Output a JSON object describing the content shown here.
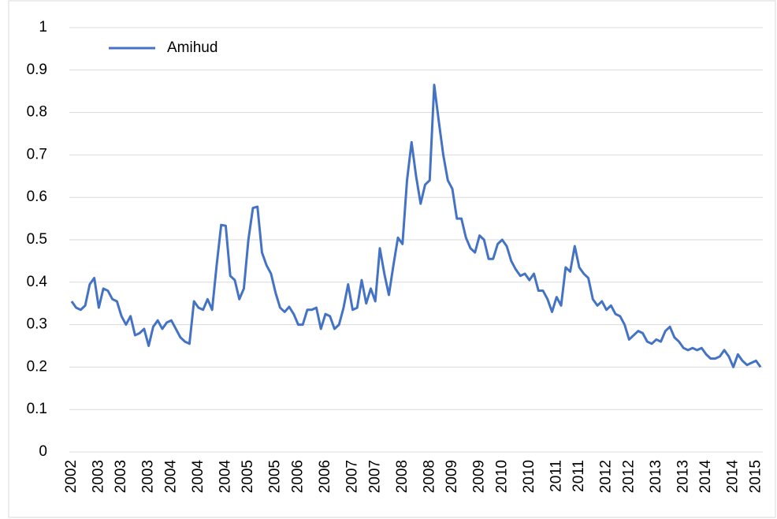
{
  "chart_data": {
    "type": "line",
    "categories": [
      "2002",
      null,
      null,
      null,
      null,
      null,
      "2003",
      null,
      null,
      null,
      null,
      "2003",
      null,
      null,
      null,
      null,
      null,
      "2003",
      null,
      null,
      null,
      null,
      "2004",
      null,
      null,
      null,
      null,
      null,
      "2004",
      null,
      null,
      null,
      null,
      null,
      "2004",
      null,
      null,
      null,
      null,
      "2005",
      null,
      null,
      null,
      null,
      null,
      "2005",
      null,
      null,
      null,
      null,
      "2006",
      null,
      null,
      null,
      null,
      null,
      "2006",
      null,
      null,
      null,
      null,
      null,
      "2007",
      null,
      null,
      null,
      null,
      "2007",
      null,
      null,
      null,
      null,
      null,
      "2008",
      null,
      null,
      null,
      null,
      null,
      "2008",
      null,
      null,
      null,
      null,
      "2009",
      null,
      null,
      null,
      null,
      null,
      "2009",
      null,
      null,
      null,
      null,
      "2010",
      null,
      null,
      null,
      null,
      null,
      "2010",
      null,
      null,
      null,
      null,
      null,
      "2011",
      null,
      null,
      null,
      null,
      "2011",
      null,
      null,
      null,
      null,
      null,
      "2012",
      null,
      null,
      null,
      null,
      "2012",
      null,
      null,
      null,
      null,
      null,
      "2013",
      null,
      null,
      null,
      null,
      null,
      "2013",
      null,
      null,
      null,
      null,
      "2014",
      null,
      null,
      null,
      null,
      null,
      "2014",
      null,
      null,
      null,
      null,
      "2015",
      null
    ],
    "series": [
      {
        "name": "Amihud",
        "color": "#4472c4",
        "values": [
          0.355,
          0.34,
          0.335,
          0.345,
          0.395,
          0.41,
          0.34,
          0.385,
          0.38,
          0.36,
          0.355,
          0.32,
          0.3,
          0.32,
          0.275,
          0.28,
          0.29,
          0.25,
          0.295,
          0.31,
          0.29,
          0.305,
          0.31,
          0.29,
          0.27,
          0.26,
          0.255,
          0.355,
          0.34,
          0.335,
          0.36,
          0.335,
          0.44,
          0.535,
          0.533,
          0.415,
          0.405,
          0.36,
          0.385,
          0.5,
          0.575,
          0.578,
          0.47,
          0.44,
          0.42,
          0.375,
          0.34,
          0.33,
          0.342,
          0.325,
          0.3,
          0.3,
          0.335,
          0.335,
          0.34,
          0.29,
          0.325,
          0.32,
          0.29,
          0.3,
          0.34,
          0.395,
          0.335,
          0.34,
          0.405,
          0.35,
          0.385,
          0.355,
          0.48,
          0.42,
          0.37,
          0.44,
          0.505,
          0.49,
          0.64,
          0.73,
          0.65,
          0.585,
          0.63,
          0.64,
          0.865,
          0.78,
          0.7,
          0.64,
          0.62,
          0.55,
          0.55,
          0.505,
          0.48,
          0.47,
          0.51,
          0.5,
          0.455,
          0.455,
          0.49,
          0.5,
          0.485,
          0.45,
          0.43,
          0.415,
          0.42,
          0.405,
          0.42,
          0.38,
          0.38,
          0.36,
          0.33,
          0.365,
          0.345,
          0.435,
          0.425,
          0.485,
          0.435,
          0.42,
          0.41,
          0.36,
          0.345,
          0.355,
          0.335,
          0.345,
          0.325,
          0.32,
          0.3,
          0.265,
          0.275,
          0.285,
          0.28,
          0.26,
          0.255,
          0.265,
          0.26,
          0.285,
          0.295,
          0.27,
          0.26,
          0.245,
          0.24,
          0.245,
          0.24,
          0.245,
          0.23,
          0.22,
          0.22,
          0.225,
          0.24,
          0.225,
          0.2,
          0.23,
          0.215,
          0.205,
          0.21,
          0.215,
          0.2
        ]
      }
    ],
    "ylim": [
      0,
      1
    ],
    "yticks": [
      0,
      0.1,
      0.2,
      0.3,
      0.4,
      0.5,
      0.6,
      0.7,
      0.8,
      0.9,
      1
    ],
    "grid": true,
    "legend": "top-left"
  }
}
